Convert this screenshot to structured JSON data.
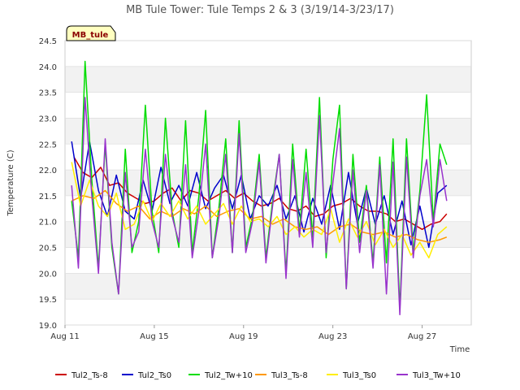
{
  "chart_data": {
    "type": "line",
    "title": "MB Tule Tower: Tule Temps 2 & 3 (3/19/14-3/23/17)",
    "xlabel": "Time",
    "ylabel": "Temperature (C)",
    "station_tag": "MB_tule",
    "x_range": [
      "Aug 11",
      "Aug 29"
    ],
    "ylim": [
      19.0,
      24.5
    ],
    "yticks": [
      19.0,
      19.5,
      20.0,
      20.5,
      21.0,
      21.5,
      22.0,
      22.5,
      23.0,
      23.5,
      24.0,
      24.5
    ],
    "ytick_labels": [
      "19.0",
      "19.5",
      "20.0",
      "20.5",
      "21.0",
      "21.5",
      "22.0",
      "22.5",
      "23.0",
      "23.5",
      "24.0",
      "24.5"
    ],
    "xticks": [
      {
        "day": 11,
        "label": "Aug 11"
      },
      {
        "day": 15,
        "label": "Aug 15"
      },
      {
        "day": 19,
        "label": "Aug 19"
      },
      {
        "day": 23,
        "label": "Aug 23"
      },
      {
        "day": 27,
        "label": "Aug 27"
      }
    ],
    "grid": "horizontal alternating bands",
    "legend_position": "bottom",
    "x_unit": "day of August",
    "series": [
      {
        "name": "Tul2_Ts-8",
        "color": "#cc0000",
        "x": [
          11.4,
          11.8,
          12.2,
          12.6,
          13.0,
          13.4,
          13.8,
          14.2,
          14.6,
          15.0,
          15.4,
          15.8,
          16.2,
          16.6,
          17.0,
          17.4,
          17.8,
          18.2,
          18.6,
          19.0,
          19.4,
          19.8,
          20.2,
          20.6,
          21.0,
          21.4,
          21.8,
          22.2,
          22.6,
          23.0,
          23.4,
          23.8,
          24.2,
          24.6,
          25.0,
          25.4,
          25.8,
          26.2,
          26.6,
          27.0,
          27.4,
          27.8,
          28.1
        ],
        "y": [
          22.25,
          21.95,
          21.85,
          22.05,
          21.7,
          21.75,
          21.55,
          21.45,
          21.35,
          21.4,
          21.55,
          21.65,
          21.4,
          21.6,
          21.55,
          21.4,
          21.5,
          21.6,
          21.45,
          21.55,
          21.4,
          21.3,
          21.35,
          21.45,
          21.25,
          21.2,
          21.3,
          21.1,
          21.15,
          21.3,
          21.35,
          21.45,
          21.3,
          21.2,
          21.2,
          21.15,
          21.0,
          21.05,
          20.95,
          20.85,
          20.95,
          21.0,
          21.15
        ]
      },
      {
        "name": "Tul2_Ts0",
        "color": "#0000cc",
        "x": [
          11.3,
          11.7,
          12.1,
          12.5,
          12.9,
          13.3,
          13.7,
          14.1,
          14.5,
          14.9,
          15.3,
          15.7,
          16.1,
          16.5,
          16.9,
          17.3,
          17.7,
          18.1,
          18.5,
          18.9,
          19.3,
          19.7,
          20.1,
          20.5,
          20.9,
          21.3,
          21.7,
          22.1,
          22.5,
          22.9,
          23.3,
          23.7,
          24.1,
          24.5,
          24.9,
          25.3,
          25.7,
          26.1,
          26.5,
          26.9,
          27.3,
          27.7,
          28.1
        ],
        "y": [
          22.55,
          21.45,
          22.55,
          21.6,
          21.1,
          21.9,
          21.2,
          21.05,
          21.8,
          21.2,
          22.05,
          21.35,
          21.7,
          21.3,
          21.95,
          21.25,
          21.65,
          21.9,
          21.25,
          21.9,
          21.05,
          21.5,
          21.3,
          21.7,
          21.05,
          21.5,
          20.8,
          21.45,
          20.95,
          21.7,
          20.85,
          21.95,
          20.95,
          21.65,
          20.95,
          21.5,
          20.75,
          21.4,
          20.55,
          21.3,
          20.5,
          21.55,
          21.7
        ]
      },
      {
        "name": "Tul2_Tw+10",
        "color": "#00dd00",
        "x": [
          11.3,
          11.6,
          11.9,
          12.2,
          12.5,
          12.8,
          13.1,
          13.4,
          13.7,
          14.0,
          14.3,
          14.6,
          14.9,
          15.2,
          15.5,
          15.8,
          16.1,
          16.4,
          16.7,
          17.0,
          17.3,
          17.6,
          17.9,
          18.2,
          18.5,
          18.8,
          19.1,
          19.4,
          19.7,
          20.0,
          20.3,
          20.6,
          20.9,
          21.2,
          21.5,
          21.8,
          22.1,
          22.4,
          22.7,
          23.0,
          23.3,
          23.6,
          23.9,
          24.2,
          24.5,
          24.8,
          25.1,
          25.4,
          25.7,
          26.0,
          26.3,
          26.6,
          26.9,
          27.2,
          27.5,
          27.8,
          28.1
        ],
        "y": [
          21.4,
          20.3,
          24.1,
          21.8,
          20.1,
          22.5,
          20.5,
          19.6,
          22.4,
          20.4,
          21.0,
          23.25,
          21.2,
          20.4,
          23.0,
          21.2,
          20.5,
          22.95,
          20.4,
          21.5,
          23.15,
          20.3,
          21.3,
          22.6,
          20.4,
          22.95,
          20.5,
          21.1,
          22.3,
          20.3,
          21.4,
          22.3,
          20.0,
          22.5,
          20.8,
          22.4,
          20.7,
          23.4,
          20.3,
          22.2,
          23.25,
          19.7,
          22.3,
          20.6,
          21.7,
          20.2,
          22.25,
          20.2,
          22.6,
          19.3,
          22.6,
          20.4,
          21.6,
          23.45,
          21.0,
          22.5,
          22.1
        ]
      },
      {
        "name": "Tul3_Ts-8",
        "color": "#ff9900",
        "x": [
          11.3,
          11.8,
          12.3,
          12.8,
          13.3,
          13.8,
          14.3,
          14.8,
          15.3,
          15.8,
          16.3,
          16.8,
          17.3,
          17.8,
          18.3,
          18.8,
          19.3,
          19.8,
          20.3,
          20.8,
          21.3,
          21.8,
          22.3,
          22.8,
          23.3,
          23.8,
          24.3,
          24.8,
          25.3,
          25.8,
          26.3,
          26.8,
          27.3,
          27.8,
          28.1
        ],
        "y": [
          21.4,
          21.5,
          21.45,
          21.6,
          21.35,
          21.2,
          21.3,
          21.05,
          21.2,
          21.1,
          21.25,
          21.15,
          21.3,
          21.1,
          21.2,
          21.25,
          21.05,
          21.1,
          20.95,
          21.05,
          20.9,
          20.85,
          20.9,
          20.75,
          20.9,
          20.95,
          20.8,
          20.75,
          20.8,
          20.7,
          20.75,
          20.65,
          20.6,
          20.65,
          20.7
        ]
      },
      {
        "name": "Tul3_Ts0",
        "color": "#ffee00",
        "x": [
          11.3,
          11.7,
          12.1,
          12.5,
          12.9,
          13.3,
          13.7,
          14.1,
          14.5,
          14.9,
          15.3,
          15.7,
          16.1,
          16.5,
          16.9,
          17.3,
          17.7,
          18.1,
          18.5,
          18.9,
          19.3,
          19.7,
          20.1,
          20.5,
          20.9,
          21.3,
          21.7,
          22.1,
          22.5,
          22.9,
          23.3,
          23.7,
          24.1,
          24.5,
          24.9,
          25.3,
          25.7,
          26.1,
          26.5,
          26.9,
          27.3,
          27.7,
          28.1
        ],
        "y": [
          22.15,
          21.3,
          21.8,
          21.3,
          21.1,
          21.55,
          20.85,
          20.95,
          21.4,
          21.0,
          21.35,
          21.1,
          21.4,
          21.05,
          21.3,
          20.95,
          21.15,
          21.35,
          20.95,
          21.3,
          21.0,
          21.05,
          20.9,
          21.1,
          20.75,
          20.9,
          20.7,
          20.85,
          20.75,
          21.25,
          20.6,
          21.05,
          20.7,
          21.0,
          20.55,
          20.85,
          20.5,
          20.75,
          20.35,
          20.6,
          20.3,
          20.75,
          20.9
        ]
      },
      {
        "name": "Tul3_Tw+10",
        "color": "#9933cc",
        "x": [
          11.3,
          11.6,
          11.9,
          12.2,
          12.5,
          12.8,
          13.1,
          13.4,
          13.7,
          14.0,
          14.3,
          14.6,
          14.9,
          15.2,
          15.5,
          15.8,
          16.1,
          16.4,
          16.7,
          17.0,
          17.3,
          17.6,
          17.9,
          18.2,
          18.5,
          18.8,
          19.1,
          19.4,
          19.7,
          20.0,
          20.3,
          20.6,
          20.9,
          21.2,
          21.5,
          21.8,
          22.1,
          22.4,
          22.7,
          23.0,
          23.3,
          23.6,
          23.9,
          24.2,
          24.5,
          24.8,
          25.1,
          25.4,
          25.7,
          26.0,
          26.3,
          26.6,
          26.9,
          27.2,
          27.5,
          27.8,
          28.1
        ],
        "y": [
          21.7,
          20.1,
          23.4,
          21.5,
          20.0,
          22.6,
          20.6,
          19.6,
          21.95,
          20.5,
          20.8,
          22.4,
          21.0,
          20.5,
          22.3,
          21.1,
          20.6,
          22.1,
          20.3,
          21.2,
          22.5,
          20.3,
          21.1,
          22.3,
          20.4,
          22.7,
          20.4,
          21.0,
          22.15,
          20.2,
          21.3,
          22.3,
          19.9,
          22.2,
          20.7,
          21.95,
          20.5,
          23.05,
          20.4,
          21.75,
          22.8,
          19.7,
          22.0,
          20.4,
          21.6,
          20.1,
          22.1,
          19.6,
          22.15,
          19.2,
          22.25,
          20.3,
          21.5,
          22.2,
          20.9,
          22.2,
          21.4
        ]
      }
    ]
  }
}
